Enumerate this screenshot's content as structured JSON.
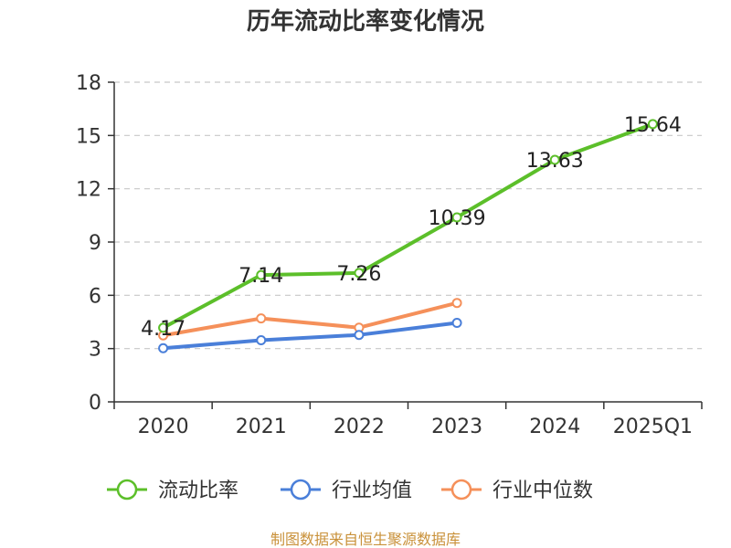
{
  "chart_data": {
    "type": "line",
    "title": "历年流动比率变化情况",
    "categories": [
      "2020",
      "2021",
      "2022",
      "2023",
      "2024",
      "2025Q1"
    ],
    "ylim": [
      0,
      18
    ],
    "yticks": [
      0,
      3,
      6,
      9,
      12,
      15,
      18
    ],
    "grid": true,
    "legend_position": "bottom",
    "series": [
      {
        "name": "流动比率",
        "color": "#5cbf2a",
        "values": [
          4.17,
          7.14,
          7.26,
          10.39,
          13.63,
          15.64
        ],
        "labels": [
          "4.17",
          "7.14",
          "7.26",
          "10.39",
          "13.63",
          "15.64"
        ]
      },
      {
        "name": "行业均值",
        "color": "#4a7fd9",
        "values": [
          3.02,
          3.47,
          3.77,
          4.45,
          null,
          null
        ]
      },
      {
        "name": "行业中位数",
        "color": "#f5905a",
        "values": [
          3.74,
          4.7,
          4.18,
          5.57,
          null,
          null
        ]
      }
    ]
  },
  "source_text": "制图数据来自恒生聚源数据库"
}
